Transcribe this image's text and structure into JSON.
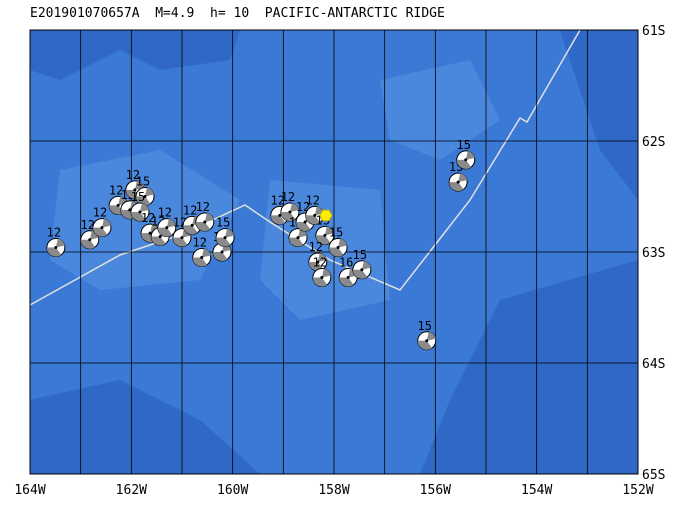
{
  "map": {
    "title": "E201901070657A  M=4.9  h= 10  PACIFIC-ANTARCTIC RIDGE",
    "xlim": [
      -164,
      -152
    ],
    "ylim": [
      -65,
      -61
    ],
    "xticks": [
      {
        "value": -164,
        "label": "164W"
      },
      {
        "value": -162,
        "label": "162W"
      },
      {
        "value": -160,
        "label": "160W"
      },
      {
        "value": -158,
        "label": "158W"
      },
      {
        "value": -156,
        "label": "156W"
      },
      {
        "value": -154,
        "label": "154W"
      },
      {
        "value": -152,
        "label": "152W"
      }
    ],
    "xgrid": [
      -164,
      -163,
      -162,
      -161,
      -160,
      -159,
      -158,
      -157,
      -156,
      -155,
      -154,
      -153,
      -152
    ],
    "yticks": [
      {
        "value": -61,
        "label": "61S"
      },
      {
        "value": -62,
        "label": "62S"
      },
      {
        "value": -63,
        "label": "63S"
      },
      {
        "value": -64,
        "label": "64S"
      },
      {
        "value": -65,
        "label": "65S"
      }
    ],
    "epicenter": {
      "lon": -158.16,
      "lat": -62.67
    },
    "events": [
      {
        "lon": -163.49,
        "lat": -62.96,
        "label": "12"
      },
      {
        "lon": -162.82,
        "lat": -62.89,
        "label": "12"
      },
      {
        "lon": -162.58,
        "lat": -62.78,
        "label": "12"
      },
      {
        "lon": -162.26,
        "lat": -62.58,
        "label": "12"
      },
      {
        "lon": -162.03,
        "lat": -62.62,
        "label": "12"
      },
      {
        "lon": -161.93,
        "lat": -62.44,
        "label": "12"
      },
      {
        "lon": -161.73,
        "lat": -62.5,
        "label": "15"
      },
      {
        "lon": -161.83,
        "lat": -62.64,
        "label": "15"
      },
      {
        "lon": -161.63,
        "lat": -62.83,
        "label": "12"
      },
      {
        "lon": -161.43,
        "lat": -62.86,
        "label": "12"
      },
      {
        "lon": -161.3,
        "lat": -62.78,
        "label": "12"
      },
      {
        "lon": -161.0,
        "lat": -62.87,
        "label": "12"
      },
      {
        "lon": -160.8,
        "lat": -62.76,
        "label": "12"
      },
      {
        "lon": -160.55,
        "lat": -62.73,
        "label": "12"
      },
      {
        "lon": -160.61,
        "lat": -63.05,
        "label": "12"
      },
      {
        "lon": -160.21,
        "lat": -63.0,
        "label": "15"
      },
      {
        "lon": -160.15,
        "lat": -62.87,
        "label": "15"
      },
      {
        "lon": -159.07,
        "lat": -62.67,
        "label": "12"
      },
      {
        "lon": -158.87,
        "lat": -62.64,
        "label": "12"
      },
      {
        "lon": -158.71,
        "lat": -62.87,
        "label": "12"
      },
      {
        "lon": -158.57,
        "lat": -62.73,
        "label": "12"
      },
      {
        "lon": -158.38,
        "lat": -62.67,
        "label": "12"
      },
      {
        "lon": -158.18,
        "lat": -62.85,
        "label": "15"
      },
      {
        "lon": -157.92,
        "lat": -62.96,
        "label": "15"
      },
      {
        "lon": -158.32,
        "lat": -63.09,
        "label": "12"
      },
      {
        "lon": -158.24,
        "lat": -63.23,
        "label": "12"
      },
      {
        "lon": -157.72,
        "lat": -63.23,
        "label": "16"
      },
      {
        "lon": -157.45,
        "lat": -63.16,
        "label": "15"
      },
      {
        "lon": -156.17,
        "lat": -63.8,
        "label": "15"
      },
      {
        "lon": -155.55,
        "lat": -62.37,
        "label": "15"
      },
      {
        "lon": -155.4,
        "lat": -62.17,
        "label": "15"
      }
    ]
  }
}
